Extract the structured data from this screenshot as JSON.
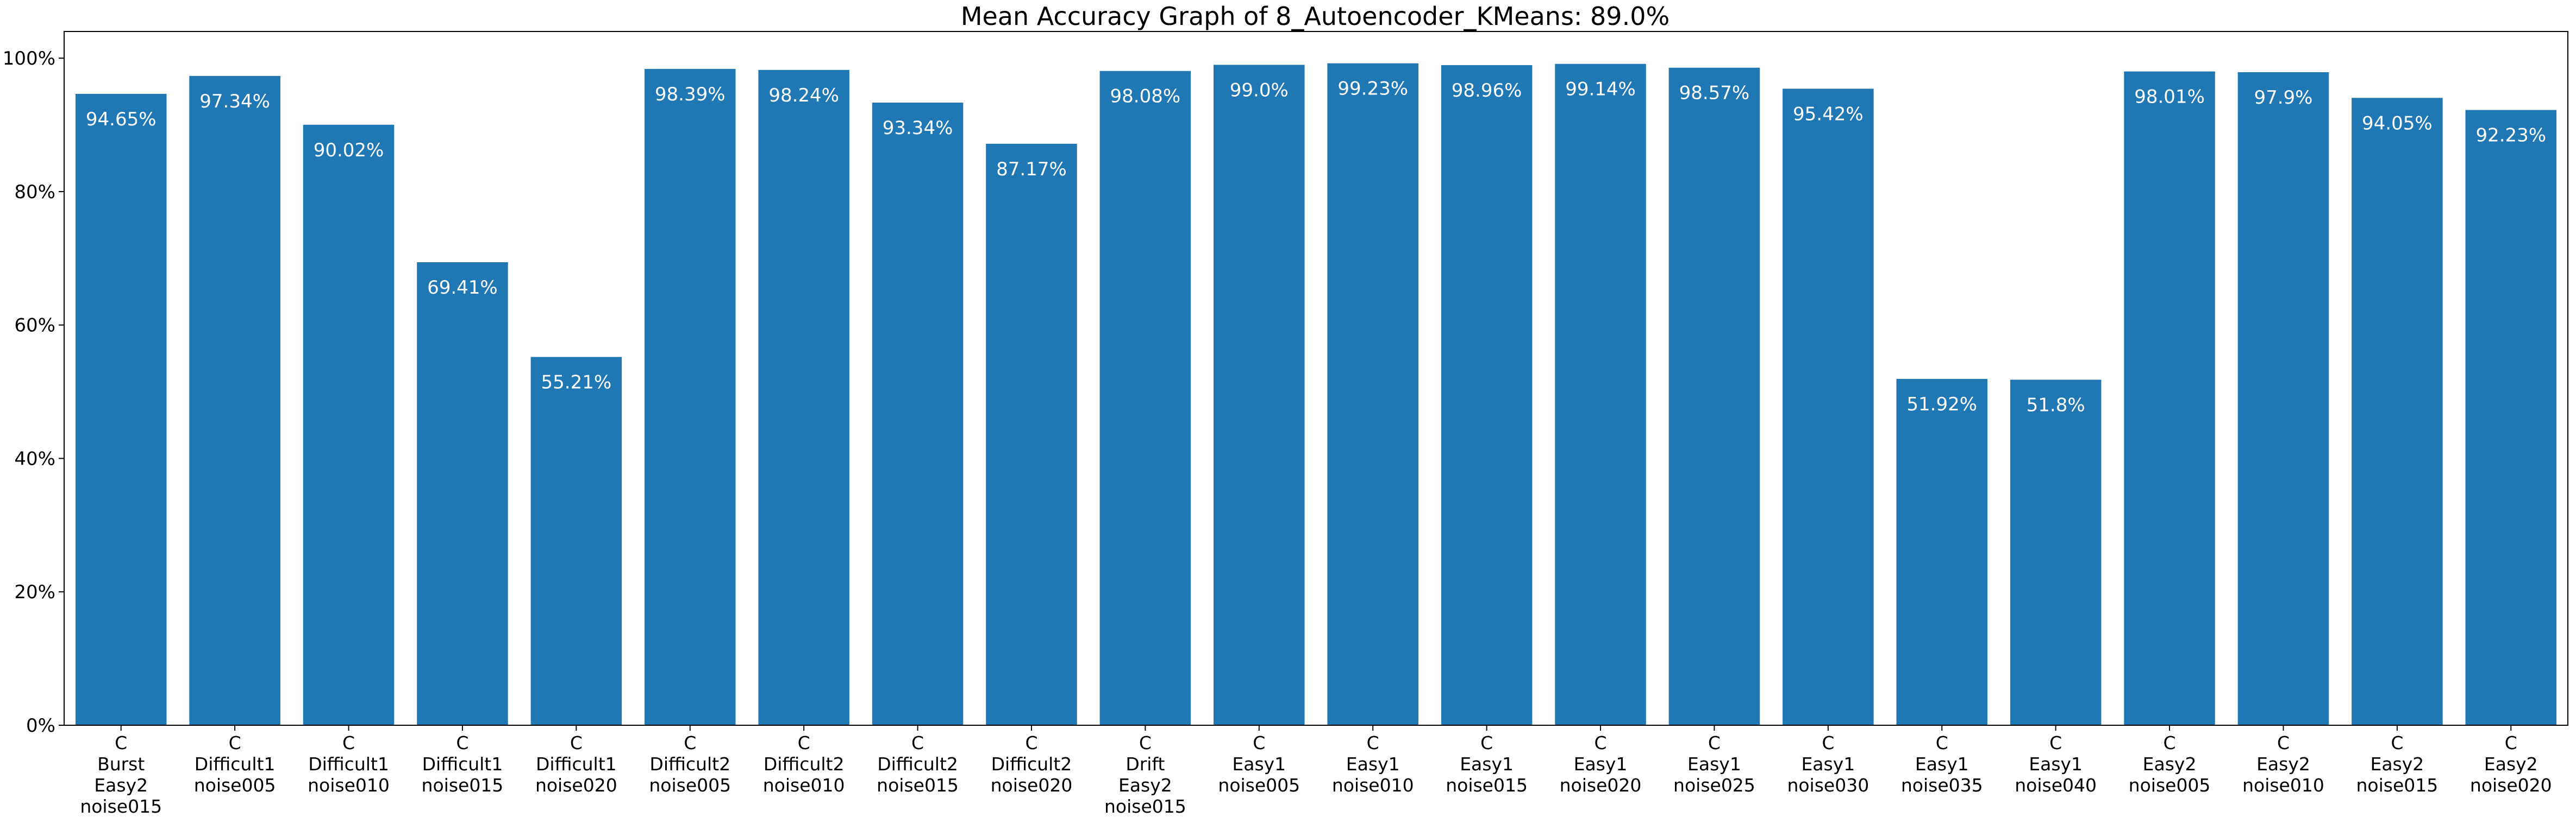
{
  "chart_data": {
    "type": "bar",
    "title": "Mean Accuracy Graph of 8_Autoencoder_KMeans: 89.0%",
    "xlabel": "",
    "ylabel": "",
    "ylim": [
      0,
      104
    ],
    "yticks": [
      0,
      20,
      40,
      60,
      80,
      100
    ],
    "ytick_labels": [
      "0%",
      "20%",
      "40%",
      "60%",
      "80%",
      "100%"
    ],
    "grid": false,
    "bar_color": "#1f77b4",
    "data_label_color": "#ffffff",
    "categories": [
      "C\nBurst\nEasy2\nnoise015",
      "C\nDifficult1\nnoise005",
      "C\nDifficult1\nnoise010",
      "C\nDifficult1\nnoise015",
      "C\nDifficult1\nnoise020",
      "C\nDifficult2\nnoise005",
      "C\nDifficult2\nnoise010",
      "C\nDifficult2\nnoise015",
      "C\nDifficult2\nnoise020",
      "C\nDrift\nEasy2\nnoise015",
      "C\nEasy1\nnoise005",
      "C\nEasy1\nnoise010",
      "C\nEasy1\nnoise015",
      "C\nEasy1\nnoise020",
      "C\nEasy1\nnoise025",
      "C\nEasy1\nnoise030",
      "C\nEasy1\nnoise035",
      "C\nEasy1\nnoise040",
      "C\nEasy2\nnoise005",
      "C\nEasy2\nnoise010",
      "C\nEasy2\nnoise015",
      "C\nEasy2\nnoise020"
    ],
    "values": [
      94.65,
      97.34,
      90.02,
      69.41,
      55.21,
      98.39,
      98.24,
      93.34,
      87.17,
      98.08,
      99.0,
      99.23,
      98.96,
      99.14,
      98.57,
      95.42,
      51.92,
      51.8,
      98.01,
      97.9,
      94.05,
      92.23
    ],
    "data_labels": [
      "94.65%",
      "97.34%",
      "90.02%",
      "69.41%",
      "55.21%",
      "98.39%",
      "98.24%",
      "93.34%",
      "87.17%",
      "98.08%",
      "99.0%",
      "99.23%",
      "98.96%",
      "99.14%",
      "98.57%",
      "95.42%",
      "51.92%",
      "51.8%",
      "98.01%",
      "97.9%",
      "94.05%",
      "92.23%"
    ]
  }
}
